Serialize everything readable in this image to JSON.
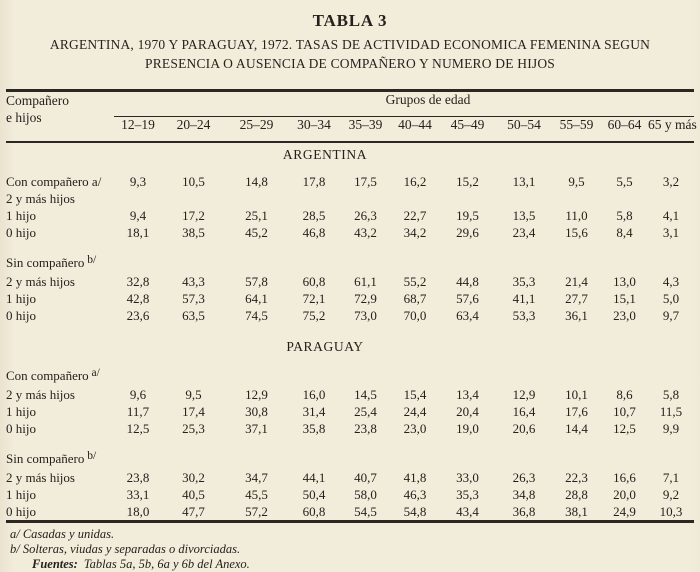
{
  "page": {
    "title": "TABLA 3",
    "subtitle_line1": "ARGENTINA, 1970 Y PARAGUAY, 1972. TASAS DE ACTIVIDAD ECONOMICA FEMENINA SEGUN",
    "subtitle_line2": "PRESENCIA O AUSENCIA DE COMPAÑERO Y NUMERO DE HIJOS"
  },
  "table": {
    "row_header_line1": "Compañero",
    "row_header_line2": "e hijos",
    "col_group_header": "Grupos de edad",
    "age_groups": [
      "12–19",
      "20–24",
      "25–29",
      "30–34",
      "35–39",
      "40–44",
      "45–49",
      "50–54",
      "55–59",
      "60–64",
      "65 y más"
    ],
    "sections": [
      {
        "name": "ARGENTINA",
        "blocks": [
          {
            "lines": [
              {
                "label": "Con compañero",
                "marker": "a/",
                "marker_raised": false,
                "values": [
                  "9,3",
                  "10,5",
                  "14,8",
                  "17,8",
                  "17,5",
                  "16,2",
                  "15,2",
                  "13,1",
                  "9,5",
                  "5,5",
                  "3,2"
                ]
              },
              {
                "label": "2 y más hijos",
                "values": []
              },
              {
                "label": "1 hijo",
                "values": [
                  "9,4",
                  "17,2",
                  "25,1",
                  "28,5",
                  "26,3",
                  "22,7",
                  "19,5",
                  "13,5",
                  "11,0",
                  "5,8",
                  "4,1"
                ]
              },
              {
                "label": "0 hijo",
                "values": [
                  "18,1",
                  "38,5",
                  "45,2",
                  "46,8",
                  "43,2",
                  "34,2",
                  "29,6",
                  "23,4",
                  "15,6",
                  "8,4",
                  "3,1"
                ]
              }
            ]
          },
          {
            "lines": [
              {
                "label": "Sin compañero",
                "marker": "b/",
                "marker_raised": true,
                "values": []
              },
              {
                "label": "2 y más hijos",
                "values": [
                  "32,8",
                  "43,3",
                  "57,8",
                  "60,8",
                  "61,1",
                  "55,2",
                  "44,8",
                  "35,3",
                  "21,4",
                  "13,0",
                  "4,3"
                ]
              },
              {
                "label": "1 hijo",
                "values": [
                  "42,8",
                  "57,3",
                  "64,1",
                  "72,1",
                  "72,9",
                  "68,7",
                  "57,6",
                  "41,1",
                  "27,7",
                  "15,1",
                  "5,0"
                ]
              },
              {
                "label": "0 hijo",
                "values": [
                  "23,6",
                  "63,5",
                  "74,5",
                  "75,2",
                  "73,0",
                  "70,0",
                  "63,4",
                  "53,3",
                  "36,1",
                  "23,0",
                  "9,7"
                ]
              }
            ]
          }
        ]
      },
      {
        "name": "PARAGUAY",
        "blocks": [
          {
            "lines": [
              {
                "label": "Con compañero",
                "marker": "a/",
                "marker_raised": true,
                "values": []
              },
              {
                "label": "2 y más hijos",
                "values": [
                  "9,6",
                  "9,5",
                  "12,9",
                  "16,0",
                  "14,5",
                  "15,4",
                  "13,4",
                  "12,9",
                  "10,1",
                  "8,6",
                  "5,8"
                ]
              },
              {
                "label": "1 hijo",
                "values": [
                  "11,7",
                  "17,4",
                  "30,8",
                  "31,4",
                  "25,4",
                  "24,4",
                  "20,4",
                  "16,4",
                  "17,6",
                  "10,7",
                  "11,5"
                ]
              },
              {
                "label": "0 hijo",
                "values": [
                  "12,5",
                  "25,3",
                  "37,1",
                  "35,8",
                  "23,8",
                  "23,0",
                  "19,0",
                  "20,6",
                  "14,4",
                  "12,5",
                  "9,9"
                ]
              }
            ]
          },
          {
            "lines": [
              {
                "label": "Sin compañero",
                "marker": "b/",
                "marker_raised": true,
                "values": []
              },
              {
                "label": "2 y más hijos",
                "values": [
                  "23,8",
                  "30,2",
                  "34,7",
                  "44,1",
                  "40,7",
                  "41,8",
                  "33,0",
                  "26,3",
                  "22,3",
                  "16,6",
                  "7,1"
                ]
              },
              {
                "label": "1 hijo",
                "values": [
                  "33,1",
                  "40,5",
                  "45,5",
                  "50,4",
                  "58,0",
                  "46,3",
                  "35,3",
                  "34,8",
                  "28,8",
                  "20,0",
                  "9,2"
                ]
              },
              {
                "label": "0 hijo",
                "values": [
                  "18,0",
                  "47,7",
                  "57,2",
                  "60,8",
                  "54,5",
                  "54,8",
                  "43,4",
                  "36,8",
                  "38,1",
                  "24,9",
                  "10,3"
                ]
              }
            ]
          }
        ]
      }
    ]
  },
  "footnotes": {
    "a": "a/ Casadas y unidas.",
    "b": "b/ Solteras, viudas y separadas o divorciadas.",
    "sources_label": "Fuentes:",
    "sources_text": "Tablas 5a, 5b, 6a y 6b del Anexo."
  },
  "colors": {
    "background": "#f2eddb",
    "ink": "#24211d",
    "rule": "#2b2722"
  }
}
